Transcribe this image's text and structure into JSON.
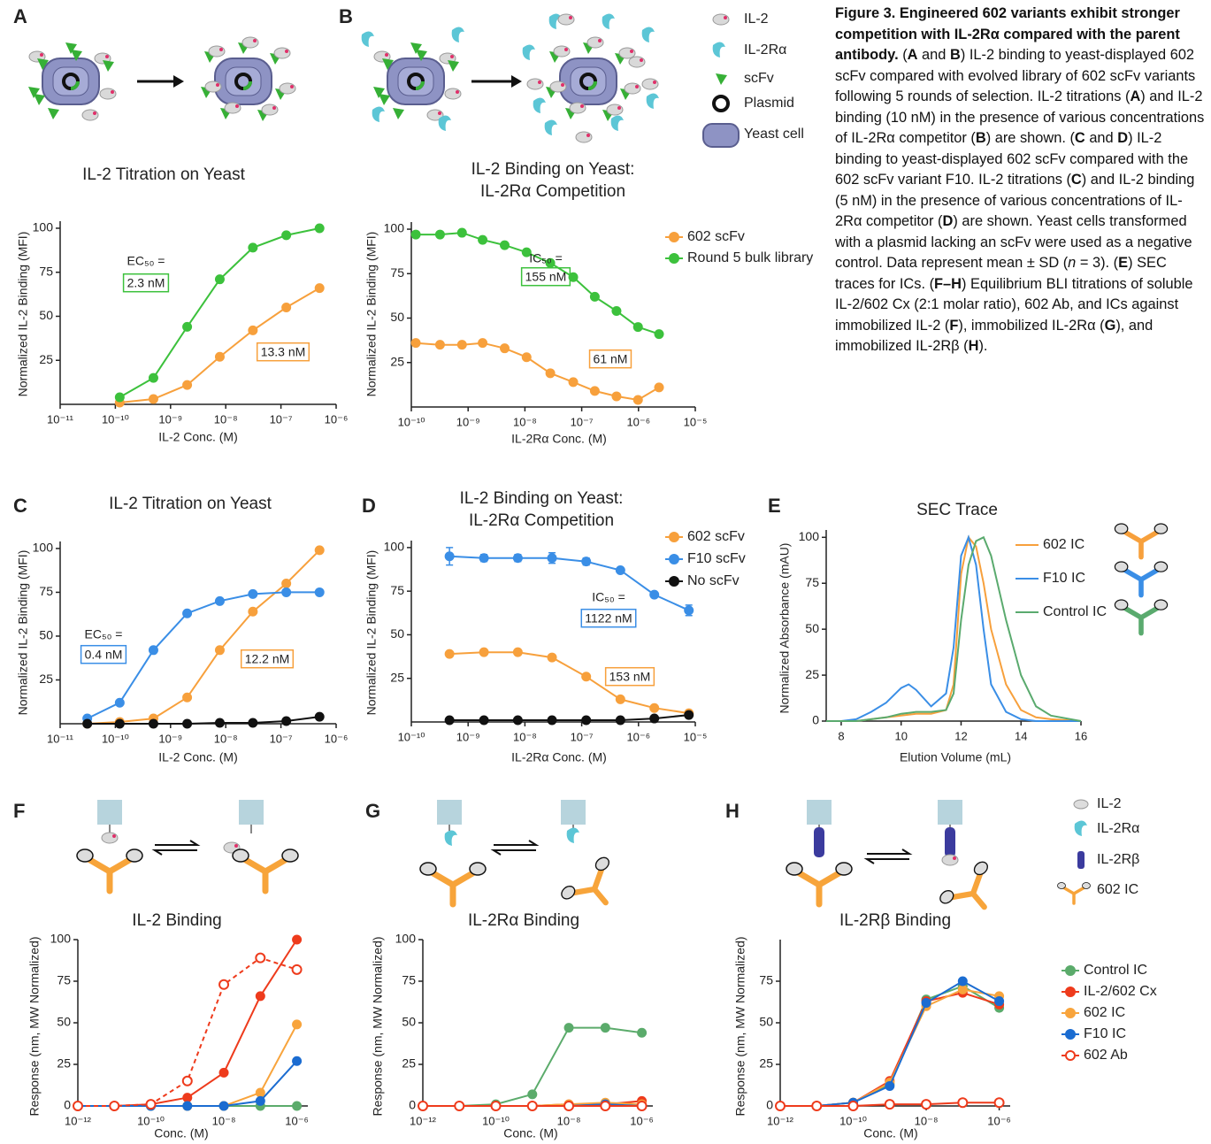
{
  "figure": {
    "panel_labels": [
      "A",
      "B",
      "C",
      "D",
      "E",
      "F",
      "G",
      "H"
    ],
    "caption": [
      {
        "text": "Figure 3. Engineered 602 variants exhibit stronger competition with IL-2Rα compared with the parent antibody.",
        "style": "b"
      },
      {
        "text": " ("
      },
      {
        "text": "A",
        "style": "b"
      },
      {
        "text": " and "
      },
      {
        "text": "B",
        "style": "b"
      },
      {
        "text": ") IL-2 binding to yeast-displayed 602 scFv compared with evolved library of 602 scFv variants following 5 rounds of selection. IL-2 titrations ("
      },
      {
        "text": "A",
        "style": "b"
      },
      {
        "text": ") and IL-2 binding (10 nM) in the presence of various concentrations of IL-2Rα competitor ("
      },
      {
        "text": "B",
        "style": "b"
      },
      {
        "text": ") are shown. ("
      },
      {
        "text": "C",
        "style": "b"
      },
      {
        "text": " and "
      },
      {
        "text": "D",
        "style": "b"
      },
      {
        "text": ") IL-2 binding to yeast-displayed 602 scFv compared with the 602 scFv variant F10. IL-2 titrations ("
      },
      {
        "text": "C",
        "style": "b"
      },
      {
        "text": ") and IL-2 binding (5 nM) in the presence of various concentrations of IL-2Rα competitor ("
      },
      {
        "text": "D",
        "style": "b"
      },
      {
        "text": ") are shown. Yeast cells transformed with a plasmid lacking an scFv were used as a negative control. Data represent mean ± SD ("
      },
      {
        "text": "n",
        "style": "i"
      },
      {
        "text": " = 3). ("
      },
      {
        "text": "E",
        "style": "b"
      },
      {
        "text": ") SEC traces for ICs. ("
      },
      {
        "text": "F–H",
        "style": "b"
      },
      {
        "text": ") Equilibrium BLI titrations of soluble IL-2/602 Cx (2:1 molar ratio), 602 Ab, and ICs against immobilized IL-2 ("
      },
      {
        "text": "F",
        "style": "b"
      },
      {
        "text": "), immobilized IL-2Rα ("
      },
      {
        "text": "G",
        "style": "b"
      },
      {
        "text": "), and immobilized IL-2Rβ ("
      },
      {
        "text": "H",
        "style": "b"
      },
      {
        "text": ")."
      }
    ],
    "legend_B": [
      {
        "text": "IL-2",
        "color": "#9a9a9a"
      },
      {
        "text": "IL-2Rα",
        "color": "#3dbccc"
      },
      {
        "text": "scFv",
        "color": "#36b036"
      },
      {
        "text": "Plasmid",
        "color": "#111111"
      },
      {
        "text": "Yeast cell",
        "color": "#8d92c6"
      }
    ],
    "legend_H": [
      {
        "text": "IL-2",
        "color": "#9a9a9a"
      },
      {
        "text": "IL-2Rα",
        "color": "#33b7c8"
      },
      {
        "text": "IL-2Rβ",
        "color": "#3b3b9e"
      },
      {
        "text": "602 IC",
        "color": "#f7a43a"
      }
    ]
  },
  "chart_data": [
    {
      "type": "line",
      "title": [
        "IL-2 Titration on Yeast"
      ],
      "x_label": "IL-2 Conc. (M)",
      "y_label": "Normalized IL-2 Binding (MFI)",
      "xscale": "log",
      "xlim": [
        1e-11,
        1e-06
      ],
      "xticks": [
        {
          "value": 1e-11,
          "label": "10⁻¹¹"
        },
        {
          "value": 1e-10,
          "label": "10⁻¹⁰"
        },
        {
          "value": 1e-09,
          "label": "10⁻⁹"
        },
        {
          "value": 1e-08,
          "label": "10⁻⁸"
        },
        {
          "value": 1e-07,
          "label": "10⁻⁷"
        },
        {
          "value": 1e-06,
          "label": "10⁻⁶"
        }
      ],
      "ylim": [
        0,
        104
      ],
      "yticks": [
        25,
        50,
        75,
        100
      ],
      "x": [
        1.2e-10,
        4.9e-10,
        2e-09,
        7.8e-09,
        3.1e-08,
        1.25e-07,
        5e-07
      ],
      "series": [
        {
          "color": "#f7a03c",
          "values": [
            1,
            3,
            11,
            27,
            42,
            55,
            66
          ]
        },
        {
          "color": "#3cc13c",
          "values": [
            4,
            15,
            44,
            71,
            89,
            96,
            100
          ]
        }
      ],
      "annotations": [
        {
          "text": "EC₅₀ ="
        },
        {
          "text": "2.3 nM",
          "color": "#3cc13c"
        },
        {
          "text": "13.3 nM",
          "color": "#f7a03c"
        }
      ]
    },
    {
      "type": "line",
      "title": [
        "IL-2 Binding on Yeast:",
        "IL-2Rα Competition"
      ],
      "x_label": "IL-2Rα Conc. (M)",
      "y_label": "Normalized IL-2 Binding (MFI)",
      "xscale": "log",
      "xlim": [
        1e-10,
        1e-05
      ],
      "xticks": [
        {
          "value": 1e-10,
          "label": "10⁻¹⁰"
        },
        {
          "value": 1e-09,
          "label": "10⁻⁹"
        },
        {
          "value": 1e-08,
          "label": "10⁻⁸"
        },
        {
          "value": 1e-07,
          "label": "10⁻⁷"
        },
        {
          "value": 1e-06,
          "label": "10⁻⁶"
        },
        {
          "value": 1e-05,
          "label": "10⁻⁵"
        }
      ],
      "ylim": [
        0,
        104
      ],
      "yticks": [
        25,
        50,
        75,
        100
      ],
      "x": [
        1.2e-10,
        3.2e-10,
        7.8e-10,
        1.8e-09,
        4.4e-09,
        1.07e-08,
        2.8e-08,
        7.1e-08,
        1.7e-07,
        4.1e-07,
        9.8e-07,
        2.3e-06
      ],
      "legend": true,
      "series": [
        {
          "name": "602 scFv",
          "color": "#f7a03c",
          "values": [
            36,
            35,
            35,
            36,
            33,
            28,
            19,
            14,
            9,
            6,
            4,
            11
          ]
        },
        {
          "name": "Round 5 bulk library",
          "color": "#3cc13c",
          "values": [
            97,
            97,
            98,
            94,
            91,
            87,
            81,
            73,
            62,
            54,
            45,
            41
          ]
        }
      ],
      "annotations": [
        {
          "text": "IC₅₀ ="
        },
        {
          "text": "155 nM",
          "color": "#3cc13c"
        },
        {
          "text": "61 nM",
          "color": "#f7a03c"
        }
      ]
    },
    {
      "type": "line",
      "title": [
        "IL-2 Titration on Yeast"
      ],
      "x_label": "IL-2 Conc. (M)",
      "y_label": "Normalized IL-2 Binding (MFI)",
      "xscale": "log",
      "xlim": [
        1e-11,
        1e-06
      ],
      "xticks": [
        {
          "value": 1e-11,
          "label": "10⁻¹¹"
        },
        {
          "value": 1e-10,
          "label": "10⁻¹⁰"
        },
        {
          "value": 1e-09,
          "label": "10⁻⁹"
        },
        {
          "value": 1e-08,
          "label": "10⁻⁸"
        },
        {
          "value": 1e-07,
          "label": "10⁻⁷"
        },
        {
          "value": 1e-06,
          "label": "10⁻⁶"
        }
      ],
      "ylim": [
        0,
        104
      ],
      "yticks": [
        25,
        50,
        75,
        100
      ],
      "x": [
        3.1e-11,
        1.2e-10,
        4.9e-10,
        2e-09,
        7.8e-09,
        3.1e-08,
        1.25e-07,
        5e-07
      ],
      "series": [
        {
          "color": "#f7a03c",
          "values": [
            0,
            1,
            3,
            15,
            42,
            64,
            80,
            99
          ]
        },
        {
          "color": "#3a8ee6",
          "values": [
            3,
            12,
            42,
            63,
            70,
            74,
            75,
            75
          ]
        },
        {
          "color": "#111111",
          "values": [
            0,
            0,
            0,
            0,
            0.5,
            0.5,
            1.5,
            4
          ]
        }
      ],
      "annotations": [
        {
          "text": "EC₅₀ ="
        },
        {
          "text": "0.4 nM",
          "color": "#3a8ee6"
        },
        {
          "text": "12.2 nM",
          "color": "#f7a03c"
        }
      ]
    },
    {
      "type": "line",
      "title": [
        "IL-2 Binding on Yeast:",
        "IL-2Rα Competition"
      ],
      "x_label": "IL-2Rα Conc. (M)",
      "y_label": "Normalized IL-2 Binding (MFI)",
      "xscale": "log",
      "xlim": [
        1e-10,
        1e-05
      ],
      "xticks": [
        {
          "value": 1e-10,
          "label": "10⁻¹⁰"
        },
        {
          "value": 1e-09,
          "label": "10⁻⁹"
        },
        {
          "value": 1e-08,
          "label": "10⁻⁸"
        },
        {
          "value": 1e-07,
          "label": "10⁻⁷"
        },
        {
          "value": 1e-06,
          "label": "10⁻⁶"
        },
        {
          "value": 1e-05,
          "label": "10⁻⁵"
        }
      ],
      "ylim": [
        0,
        104
      ],
      "yticks": [
        25,
        50,
        75,
        100
      ],
      "x": [
        4.7e-10,
        1.9e-09,
        7.5e-09,
        3e-08,
        1.2e-07,
        4.8e-07,
        1.9e-06,
        7.7e-06
      ],
      "legend": true,
      "series": [
        {
          "name": "602 scFv",
          "color": "#f7a03c",
          "values": [
            39,
            40,
            40,
            37,
            26,
            13,
            8,
            5
          ]
        },
        {
          "name": "F10 scFv",
          "color": "#3a8ee6",
          "values": [
            95,
            94,
            94,
            94,
            92,
            87,
            73,
            64
          ],
          "errors": [
            5,
            2,
            2,
            3,
            2,
            1,
            1,
            3
          ]
        },
        {
          "name": "No scFv",
          "color": "#111111",
          "values": [
            1,
            1,
            1,
            1,
            1,
            1,
            2,
            4
          ]
        }
      ],
      "annotations": [
        {
          "text": "IC₅₀ ="
        },
        {
          "text": "1122 nM",
          "color": "#3a8ee6"
        },
        {
          "text": "153 nM",
          "color": "#f7a03c"
        }
      ]
    },
    {
      "type": "line",
      "title": [
        "SEC Trace"
      ],
      "x_label": "Elution Volume (mL)",
      "y_label": "Normalized Absorbance (mAU)",
      "xscale": "linear",
      "xlim": [
        7.5,
        16
      ],
      "xticks": [
        8,
        10,
        12,
        14,
        16
      ],
      "ylim": [
        0,
        104
      ],
      "yticks": [
        0,
        25,
        50,
        75,
        100
      ],
      "markers": false,
      "legend": true,
      "x": [
        7.5,
        8,
        8.5,
        9,
        9.5,
        10,
        10.25,
        10.5,
        11,
        11.5,
        11.75,
        12,
        12.25,
        12.5,
        12.75,
        13,
        13.5,
        14,
        14.5,
        15,
        16
      ],
      "series": [
        {
          "name": "602 IC",
          "color": "#f7a03c",
          "values": [
            0,
            0,
            0,
            1,
            2,
            3,
            3.5,
            4,
            4,
            6,
            20,
            80,
            100,
            95,
            75,
            50,
            20,
            6,
            2,
            1,
            0
          ]
        },
        {
          "name": "F10 IC",
          "color": "#3a8ee6",
          "values": [
            0,
            0,
            1,
            5,
            10,
            18,
            20,
            17,
            8,
            15,
            40,
            90,
            100,
            85,
            50,
            20,
            5,
            1,
            0,
            0,
            0
          ]
        },
        {
          "name": "Control IC",
          "color": "#5aaa6e",
          "values": [
            0,
            0,
            0,
            1,
            2,
            4,
            4.5,
            5,
            5,
            6,
            15,
            55,
            85,
            98,
            100,
            90,
            55,
            25,
            8,
            3,
            0
          ]
        }
      ]
    },
    {
      "type": "line",
      "title": [
        "IL-2 Binding"
      ],
      "x_label": "Conc. (M)",
      "y_label": "Response (nm, MW Normalized)",
      "xscale": "log",
      "xlim": [
        1e-12,
        2e-06
      ],
      "xticks": [
        {
          "value": 1e-12,
          "label": "10⁻¹²"
        },
        {
          "value": 1e-10,
          "label": "10⁻¹⁰"
        },
        {
          "value": 1e-08,
          "label": "10⁻⁸"
        },
        {
          "value": 1e-06,
          "label": "10⁻⁶"
        }
      ],
      "ylim": [
        0,
        100
      ],
      "yticks": [
        0,
        25,
        50,
        75,
        100
      ],
      "x": [
        1e-12,
        1e-11,
        1e-10,
        1e-09,
        1e-08,
        1e-07,
        1e-06
      ],
      "series": [
        {
          "color": "#5bab6b",
          "values": [
            0,
            0,
            0,
            0,
            0,
            0,
            0
          ]
        },
        {
          "color": "#ee3b1c",
          "values": [
            0,
            0,
            1,
            5,
            20,
            66,
            100
          ]
        },
        {
          "color": "#f8a43c",
          "values": [
            0,
            0,
            0,
            0,
            0,
            8,
            49
          ]
        },
        {
          "color": "#1b6cd1",
          "values": [
            0,
            0,
            0,
            0,
            0,
            3,
            27
          ]
        },
        {
          "color": "#ee3b1c",
          "open": true,
          "dashed": true,
          "values": [
            0,
            0,
            1,
            15,
            73,
            89,
            82
          ]
        }
      ]
    },
    {
      "type": "line",
      "title": [
        "IL-2Rα Binding"
      ],
      "x_label": "Conc. (M)",
      "y_label": "Response (nm, MW Normalized)",
      "xscale": "log",
      "xlim": [
        1e-12,
        2e-06
      ],
      "xticks": [
        {
          "value": 1e-12,
          "label": "10⁻¹²"
        },
        {
          "value": 1e-10,
          "label": "10⁻¹⁰"
        },
        {
          "value": 1e-08,
          "label": "10⁻⁸"
        },
        {
          "value": 1e-06,
          "label": "10⁻⁶"
        }
      ],
      "ylim": [
        0,
        100
      ],
      "yticks": [
        0,
        25,
        50,
        75,
        100
      ],
      "x": [
        1e-12,
        1e-11,
        1e-10,
        1e-09,
        1e-08,
        1e-07,
        1e-06
      ],
      "series": [
        {
          "color": "#5bab6b",
          "values": [
            0,
            0,
            1,
            7,
            47,
            47,
            44
          ]
        },
        {
          "color": "#ee3b1c",
          "values": [
            0,
            0,
            0,
            0,
            1,
            1,
            3
          ]
        },
        {
          "color": "#f8a43c",
          "values": [
            0,
            0,
            0,
            0,
            1,
            2,
            1
          ]
        },
        {
          "color": "#1b6cd1",
          "values": [
            0,
            0,
            0,
            0,
            0,
            1,
            0
          ]
        },
        {
          "color": "#ee3b1c",
          "open": true,
          "values": [
            0,
            0,
            0,
            0,
            0,
            0,
            0
          ]
        }
      ]
    },
    {
      "type": "line",
      "title": [
        "IL-2Rβ Binding"
      ],
      "x_label": "Conc. (M)",
      "y_label": "Response (nm, MW Normalized)",
      "xscale": "log",
      "xlim": [
        1e-12,
        2e-06
      ],
      "xticks": [
        {
          "value": 1e-12,
          "label": "10⁻¹²"
        },
        {
          "value": 1e-10,
          "label": "10⁻¹⁰"
        },
        {
          "value": 1e-08,
          "label": "10⁻⁸"
        },
        {
          "value": 1e-06,
          "label": "10⁻⁶"
        }
      ],
      "ylim": [
        0,
        100
      ],
      "yticks": [
        0,
        25,
        50,
        75
      ],
      "x": [
        1e-12,
        1e-11,
        1e-10,
        1e-09,
        1e-08,
        1e-07,
        1e-06
      ],
      "legend": true,
      "series": [
        {
          "name": "Control IC",
          "color": "#5bab6b",
          "values": [
            0,
            0,
            2,
            13,
            64,
            72,
            59
          ]
        },
        {
          "name": "IL-2/602 Cx",
          "color": "#ee3b1c",
          "values": [
            0,
            0,
            2,
            15,
            63,
            68,
            61
          ]
        },
        {
          "name": "602 IC",
          "color": "#f8a43c",
          "values": [
            0,
            0,
            2,
            14,
            60,
            70,
            66
          ]
        },
        {
          "name": "F10 IC",
          "color": "#1b6cd1",
          "values": [
            0,
            0,
            2,
            12,
            62,
            75,
            63
          ]
        },
        {
          "name": "602 Ab",
          "color": "#ee3b1c",
          "open": true,
          "values": [
            0,
            0,
            0,
            1,
            1,
            2,
            2
          ]
        }
      ]
    }
  ]
}
